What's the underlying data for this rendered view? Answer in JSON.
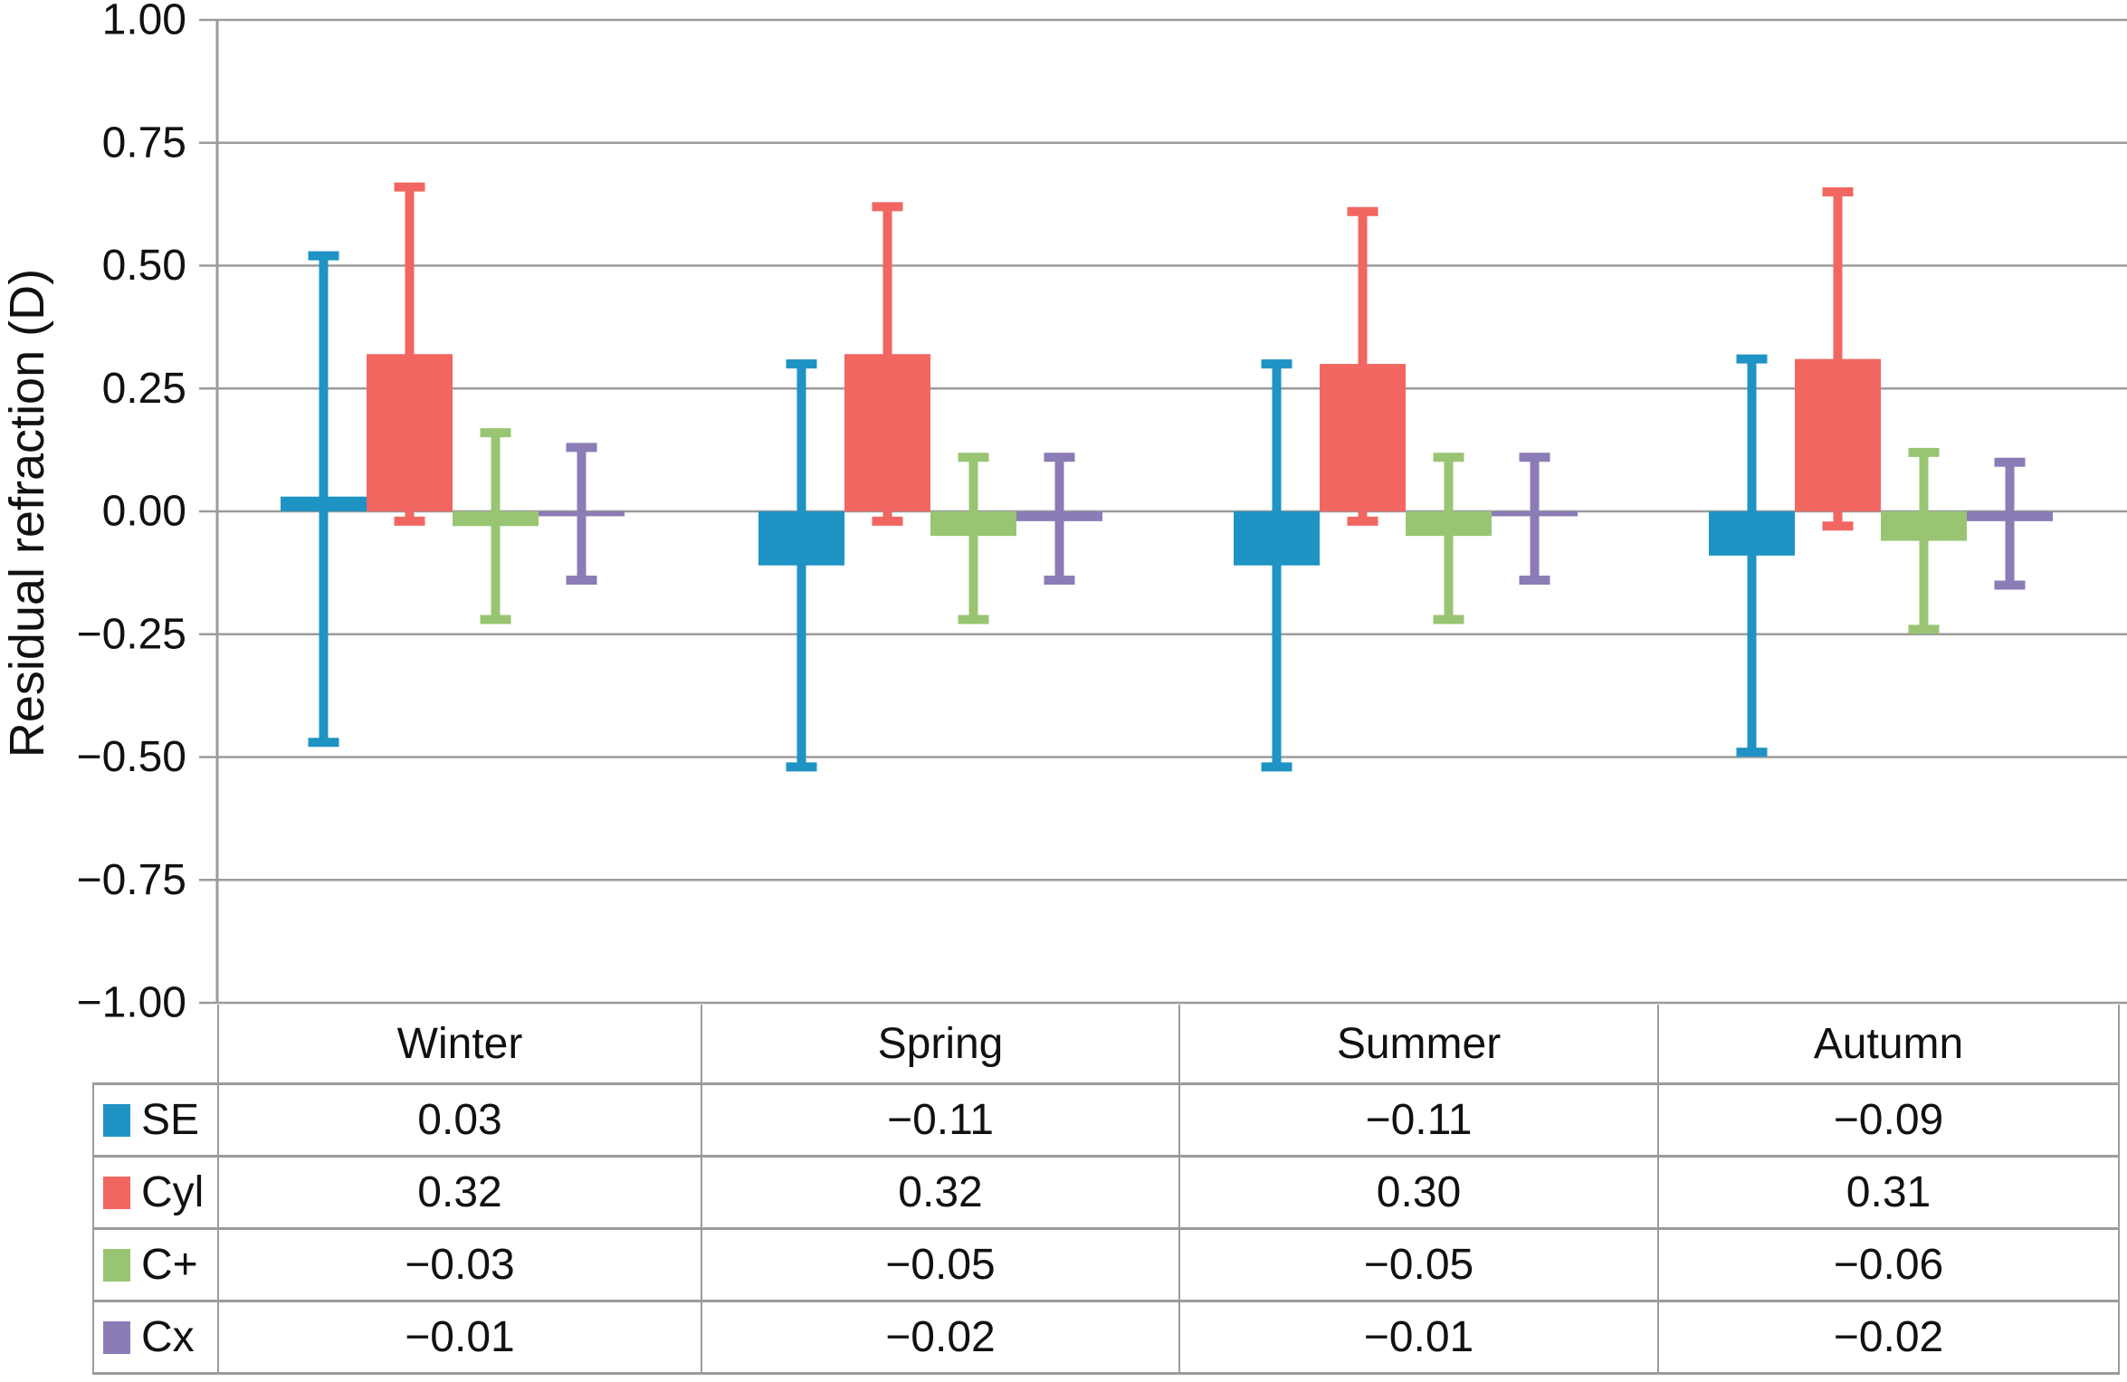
{
  "chart_data": {
    "type": "bar",
    "title": "",
    "ylabel": "Residual refraction (D)",
    "xlabel": "",
    "ylim": [
      -1.0,
      1.0
    ],
    "ytick_step": 0.25,
    "yticks": {
      "values": [
        1.0,
        0.75,
        0.5,
        0.25,
        0.0,
        -0.25,
        -0.5,
        -0.75,
        -1.0
      ],
      "labels": [
        "1.00",
        "0.75",
        "0.50",
        "0.25",
        "0.00",
        "−0.25",
        "−0.50",
        "−0.75",
        "−1.00"
      ]
    },
    "grid": true,
    "grid_color": "#9B9B9B",
    "background": "#FFFFFF",
    "text_color": "#111111",
    "legend_position": "table-left-column",
    "categories": [
      "Winter",
      "Spring",
      "Summer",
      "Autumn"
    ],
    "series": [
      {
        "name": "SE",
        "color": "#1E93C4",
        "values": [
          0.03,
          -0.11,
          -0.11,
          -0.09
        ],
        "error_low": [
          -0.47,
          -0.52,
          -0.52,
          -0.49
        ],
        "error_high": [
          0.52,
          0.3,
          0.3,
          0.31
        ],
        "display": [
          "0.03",
          "−0.11",
          "−0.11",
          "−0.09"
        ]
      },
      {
        "name": "Cyl",
        "color": "#F26661",
        "values": [
          0.32,
          0.32,
          0.3,
          0.31
        ],
        "error_low": [
          -0.02,
          -0.02,
          -0.02,
          -0.03
        ],
        "error_high": [
          0.66,
          0.62,
          0.61,
          0.65
        ],
        "display": [
          "0.32",
          "0.32",
          "0.30",
          "0.31"
        ]
      },
      {
        "name": "C+",
        "color": "#99C573",
        "values": [
          -0.03,
          -0.05,
          -0.05,
          -0.06
        ],
        "error_low": [
          -0.22,
          -0.22,
          -0.22,
          -0.24
        ],
        "error_high": [
          0.16,
          0.11,
          0.11,
          0.12
        ],
        "display": [
          "−0.03",
          "−0.05",
          "−0.05",
          "−0.06"
        ]
      },
      {
        "name": "Cx",
        "color": "#8B7CB6",
        "values": [
          -0.01,
          -0.02,
          -0.01,
          -0.02
        ],
        "error_low": [
          -0.14,
          -0.14,
          -0.14,
          -0.15
        ],
        "error_high": [
          0.13,
          0.11,
          0.11,
          0.1
        ],
        "display": [
          "−0.01",
          "−0.02",
          "−0.01",
          "−0.02"
        ]
      }
    ]
  }
}
